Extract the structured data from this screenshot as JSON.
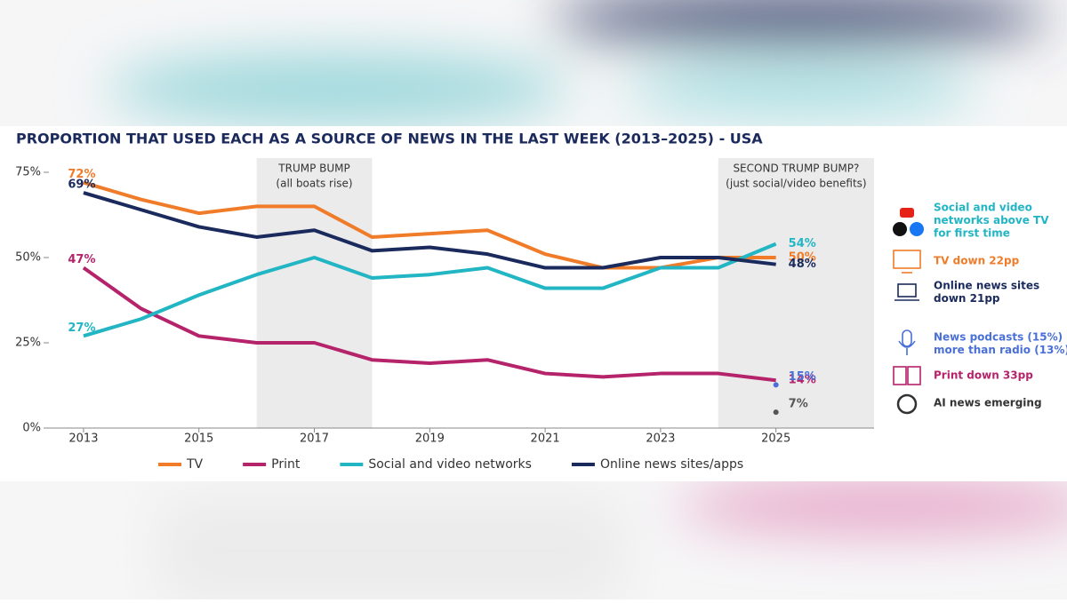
{
  "chart_data": {
    "type": "line",
    "title": "PROPORTION THAT USED EACH AS A SOURCE OF NEWS IN THE LAST WEEK (2013–2025) - USA",
    "x": [
      2013,
      2014,
      2015,
      2016,
      2017,
      2018,
      2019,
      2020,
      2021,
      2022,
      2023,
      2024,
      2025
    ],
    "xlim": [
      2012.4,
      2026.7
    ],
    "xticks": [
      2013,
      2015,
      2017,
      2019,
      2021,
      2023,
      2025
    ],
    "ylim": [
      0,
      75
    ],
    "yticks": [
      {
        "value": 0,
        "label": "0%"
      },
      {
        "value": 25,
        "label": "25%"
      },
      {
        "value": 50,
        "label": "50%"
      },
      {
        "value": 75,
        "label": "75%"
      }
    ],
    "series": [
      {
        "name": "TV",
        "color": "#f07c2a",
        "values": [
          72,
          67,
          63,
          65,
          65,
          56,
          57,
          58,
          51,
          47,
          47,
          50,
          50
        ],
        "value_labels": [
          "72%",
          null,
          null,
          null,
          null,
          null,
          null,
          null,
          null,
          null,
          null,
          null,
          "50%"
        ]
      },
      {
        "name": "Print",
        "color": "#b5236b",
        "values": [
          47,
          35,
          27,
          25,
          25,
          20,
          19,
          20,
          16,
          15,
          16,
          16,
          14
        ],
        "value_labels": [
          "47%",
          null,
          null,
          null,
          null,
          null,
          null,
          null,
          null,
          null,
          null,
          null,
          "14%"
        ]
      },
      {
        "name": "Social and video networks",
        "color": "#22b5c4",
        "values": [
          27,
          32,
          39,
          45,
          50,
          44,
          45,
          47,
          41,
          41,
          47,
          47,
          54
        ],
        "value_labels": [
          "27%",
          null,
          null,
          null,
          null,
          null,
          null,
          null,
          null,
          null,
          null,
          null,
          "54%"
        ]
      },
      {
        "name": "Online news sites/apps",
        "color": "#1b2a5c",
        "values": [
          69,
          64,
          59,
          56,
          58,
          52,
          53,
          51,
          47,
          47,
          50,
          50,
          48
        ],
        "value_labels": [
          "69%",
          null,
          null,
          null,
          null,
          null,
          null,
          null,
          null,
          null,
          null,
          null,
          "48%"
        ]
      }
    ],
    "extra_points": [
      {
        "x": 2025,
        "value": 15,
        "value_label": "15%",
        "color": "#4a6fd6"
      },
      {
        "x": 2025,
        "value": 7,
        "value_label": "7%",
        "color": "#555555"
      }
    ],
    "shaded": [
      {
        "x": [
          2016,
          2018
        ],
        "label": "TRUMP BUMP",
        "sublabel": "(all boats rise)"
      },
      {
        "x": [
          2024,
          2026.7
        ],
        "label": "SECOND TRUMP BUMP?",
        "sublabel": "(just social/video benefits)"
      }
    ],
    "notes": [
      {
        "lines": [
          "Social and video",
          "networks above TV",
          "for first time"
        ],
        "color": "#22b5c4"
      },
      {
        "lines": [
          "TV down 22pp"
        ],
        "color": "#f07c2a"
      },
      {
        "lines": [
          "Online news sites",
          "down 21pp"
        ],
        "color": "#1b2a5c"
      },
      {
        "lines": [
          "News podcasts (15%)",
          "more than radio (13%)"
        ],
        "color": "#4a6fd6"
      },
      {
        "lines": [
          "Print down 33pp"
        ],
        "color": "#b5236b"
      },
      {
        "lines": [
          "AI news emerging"
        ],
        "color": "#333333"
      }
    ]
  }
}
